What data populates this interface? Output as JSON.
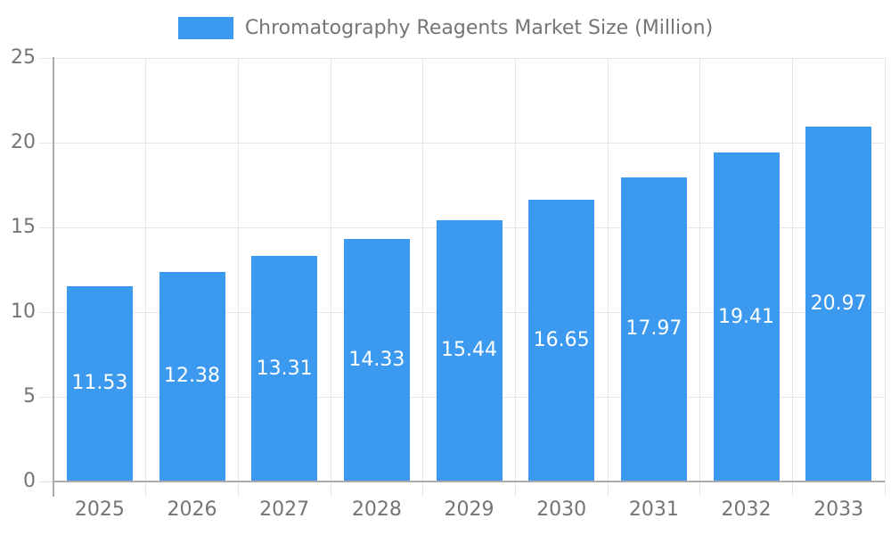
{
  "legend": {
    "label": "Chromatography Reagents Market Size (Million)"
  },
  "chart_data": {
    "type": "bar",
    "title": "Chromatography Reagents Market Size (Million)",
    "series_name": "Chromatography Reagents Market Size (Million)",
    "legend_position": "top",
    "categories": [
      "2025",
      "2026",
      "2027",
      "2028",
      "2029",
      "2030",
      "2031",
      "2032",
      "2033"
    ],
    "values": [
      11.53,
      12.38,
      13.31,
      14.33,
      15.44,
      16.65,
      17.97,
      19.41,
      20.97
    ],
    "value_labels": [
      "11.53",
      "12.38",
      "13.31",
      "14.33",
      "15.44",
      "16.65",
      "17.97",
      "19.41",
      "20.97"
    ],
    "xlabel": "",
    "ylabel": "",
    "ylim": [
      0,
      25
    ],
    "yticks": [
      0,
      5,
      10,
      15,
      20,
      25
    ],
    "grid": true,
    "bar_color": "#3B99EF",
    "value_label_color": "#FFFFFF",
    "axis_text_color": "#757575",
    "axis_line_color": "#ABABAB",
    "gridline_color": "#E6E6E6",
    "tick_color": "#E0E0E0",
    "background_color": "#FFFFFF"
  }
}
